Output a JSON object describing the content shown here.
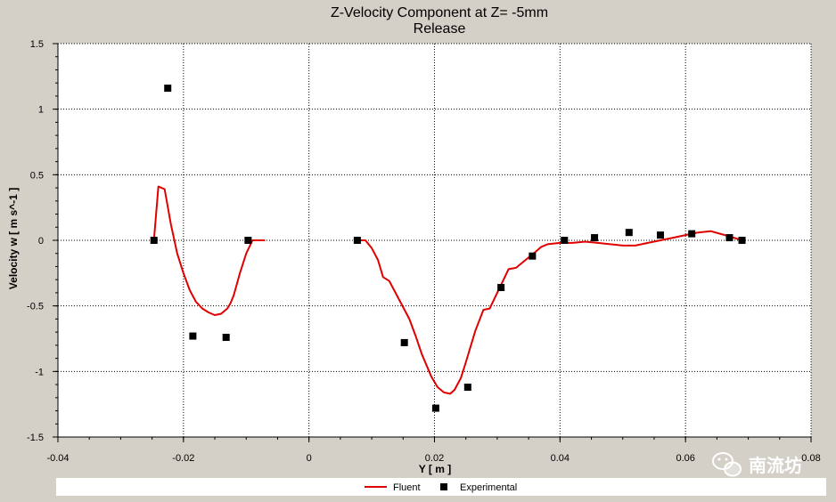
{
  "chart_data": {
    "type": "scatter",
    "title": "Z-Velocity Component at Z= -5mm",
    "subtitle": "Release",
    "xlabel": "Y [ m ]",
    "ylabel": "Velocity w [ m s^-1 ]",
    "xlim": [
      -0.04,
      0.08
    ],
    "ylim": [
      -1.5,
      1.5
    ],
    "xticks": [
      -0.04,
      -0.02,
      0,
      0.02,
      0.04,
      0.06,
      0.08
    ],
    "xtick_labels": [
      "-0.04",
      "-0.02",
      "0",
      "0.02",
      "0.04",
      "0.06",
      "0.08"
    ],
    "yticks": [
      1.5,
      1,
      0.5,
      0,
      -0.5,
      -1,
      -1.5
    ],
    "ytick_labels": [
      "1.5",
      "1",
      "0.5",
      "0",
      "-0.5",
      "-1",
      "-1.5"
    ],
    "grid": true,
    "legend_position": "bottom",
    "series": [
      {
        "name": "Fluent",
        "kind": "line",
        "color": "#e00000",
        "segments": [
          [
            [
              -0.0247,
              0.0
            ],
            [
              -0.024,
              0.41
            ],
            [
              -0.023,
              0.39
            ],
            [
              -0.022,
              0.12
            ],
            [
              -0.021,
              -0.1
            ],
            [
              -0.02,
              -0.25
            ],
            [
              -0.019,
              -0.38
            ],
            [
              -0.018,
              -0.47
            ],
            [
              -0.017,
              -0.52
            ],
            [
              -0.016,
              -0.55
            ],
            [
              -0.015,
              -0.57
            ],
            [
              -0.014,
              -0.56
            ],
            [
              -0.013,
              -0.52
            ],
            [
              -0.0125,
              -0.48
            ],
            [
              -0.012,
              -0.42
            ],
            [
              -0.011,
              -0.25
            ],
            [
              -0.01,
              -0.1
            ],
            [
              -0.009,
              0.0
            ],
            [
              -0.007,
              0.0
            ]
          ],
          [
            [
              0.0075,
              0.0
            ],
            [
              0.009,
              0.0
            ],
            [
              0.01,
              -0.06
            ],
            [
              0.011,
              -0.15
            ],
            [
              0.0118,
              -0.28
            ],
            [
              0.0128,
              -0.31
            ],
            [
              0.014,
              -0.42
            ],
            [
              0.015,
              -0.51
            ],
            [
              0.016,
              -0.6
            ],
            [
              0.017,
              -0.73
            ],
            [
              0.018,
              -0.87
            ],
            [
              0.0195,
              -1.04
            ],
            [
              0.0205,
              -1.12
            ],
            [
              0.0215,
              -1.16
            ],
            [
              0.0225,
              -1.17
            ],
            [
              0.0232,
              -1.14
            ],
            [
              0.0242,
              -1.05
            ],
            [
              0.025,
              -0.93
            ],
            [
              0.0265,
              -0.69
            ],
            [
              0.0278,
              -0.53
            ],
            [
              0.0288,
              -0.52
            ],
            [
              0.03,
              -0.4
            ],
            [
              0.031,
              -0.3
            ],
            [
              0.0318,
              -0.22
            ],
            [
              0.033,
              -0.21
            ],
            [
              0.0345,
              -0.15
            ],
            [
              0.0358,
              -0.1
            ],
            [
              0.037,
              -0.05
            ],
            [
              0.038,
              -0.03
            ],
            [
              0.04,
              -0.02
            ],
            [
              0.042,
              -0.02
            ],
            [
              0.044,
              -0.01
            ],
            [
              0.046,
              -0.02
            ],
            [
              0.048,
              -0.03
            ],
            [
              0.05,
              -0.04
            ],
            [
              0.052,
              -0.04
            ],
            [
              0.054,
              -0.02
            ],
            [
              0.056,
              0.0
            ],
            [
              0.058,
              0.02
            ],
            [
              0.06,
              0.04
            ],
            [
              0.062,
              0.06
            ],
            [
              0.064,
              0.07
            ],
            [
              0.0655,
              0.05
            ],
            [
              0.067,
              0.03
            ],
            [
              0.069,
              0.0
            ]
          ]
        ]
      },
      {
        "name": "Experimental",
        "kind": "marker",
        "color": "#000000",
        "points": [
          [
            -0.0247,
            0.0
          ],
          [
            -0.0225,
            1.16
          ],
          [
            -0.0185,
            -0.73
          ],
          [
            -0.0132,
            -0.74
          ],
          [
            -0.0097,
            0.0
          ],
          [
            0.0077,
            0.0
          ],
          [
            0.0152,
            -0.78
          ],
          [
            0.0202,
            -1.28
          ],
          [
            0.0253,
            -1.12
          ],
          [
            0.0306,
            -0.36
          ],
          [
            0.0356,
            -0.12
          ],
          [
            0.0407,
            0.0
          ],
          [
            0.0455,
            0.02
          ],
          [
            0.051,
            0.06
          ],
          [
            0.056,
            0.04
          ],
          [
            0.061,
            0.05
          ],
          [
            0.067,
            0.02
          ],
          [
            0.069,
            0.0
          ]
        ]
      }
    ]
  },
  "watermark": {
    "text": "南流坊",
    "icon": "wechat-icon"
  }
}
